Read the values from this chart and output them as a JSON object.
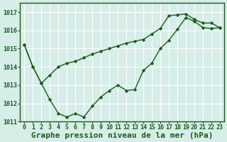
{
  "xlabel": "Graphe pression niveau de la mer (hPa)",
  "bg_color": "#d6ede8",
  "grid_color": "#ffffff",
  "line_color": "#1a5c1a",
  "ylim": [
    1011.0,
    1017.5
  ],
  "xlim": [
    -0.5,
    23.5
  ],
  "yticks": [
    1011,
    1012,
    1013,
    1014,
    1015,
    1016,
    1017
  ],
  "xticks": [
    0,
    1,
    2,
    3,
    4,
    5,
    6,
    7,
    8,
    9,
    10,
    11,
    12,
    13,
    14,
    15,
    16,
    17,
    18,
    19,
    20,
    21,
    22,
    23
  ],
  "series1": [
    1015.2,
    1014.0,
    1013.1,
    1013.55,
    1014.0,
    1014.2,
    1014.3,
    1014.5,
    1014.7,
    1014.85,
    1015.0,
    1015.15,
    1015.3,
    1015.4,
    1015.5,
    1015.8,
    1016.1,
    1016.8,
    1016.85,
    1016.9,
    1016.6,
    1016.4,
    1016.4,
    1016.15
  ],
  "series2": [
    1015.2,
    1014.0,
    1013.1,
    1012.2,
    1011.45,
    1011.25,
    1011.45,
    1011.25,
    1011.85,
    1012.35,
    1012.7,
    1013.0,
    1012.7,
    1012.75,
    1013.8,
    1014.2,
    1015.0,
    1015.45,
    1016.05,
    1016.7,
    1016.5,
    1016.15,
    1016.1,
    1016.15
  ],
  "xlabel_fontsize": 8,
  "tick_fontsize": 6
}
